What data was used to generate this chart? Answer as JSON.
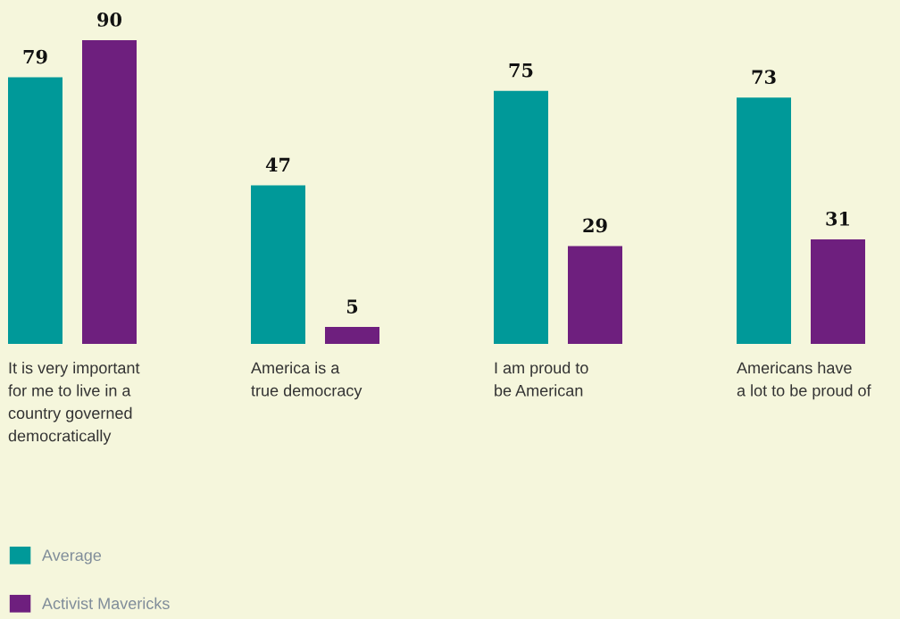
{
  "chart_data": {
    "type": "bar",
    "categories": [
      "It is very important\nfor me to live in a\ncountry governed\ndemocratically",
      "America is a\ntrue democracy",
      "I am proud to\nbe American",
      "Americans have\na lot to be proud of"
    ],
    "series": [
      {
        "name": "Average",
        "color": "#009999",
        "values": [
          79,
          47,
          75,
          73
        ]
      },
      {
        "name": "Activist Mavericks",
        "color": "#6e1f7e",
        "values": [
          90,
          5,
          29,
          31
        ]
      }
    ],
    "data_labels": true,
    "legend": "bottom left"
  }
}
